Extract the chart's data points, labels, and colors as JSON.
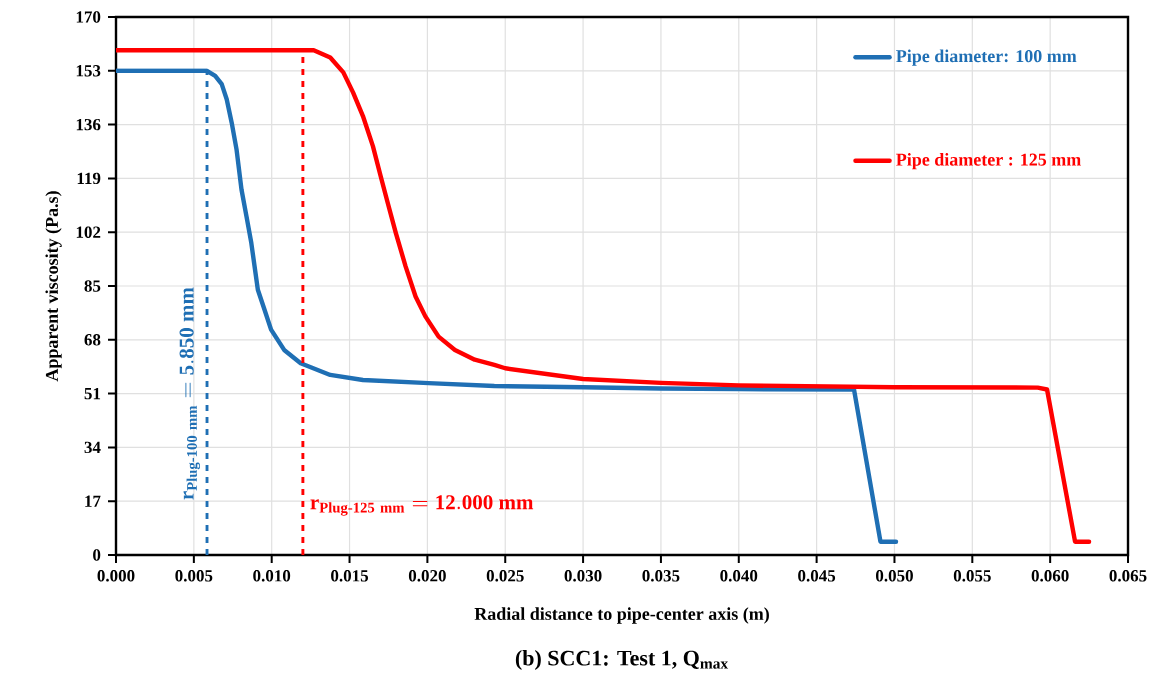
{
  "chart_data": {
    "type": "line",
    "title": "(b) SCC1: Test 1, Q$_{max}$",
    "xlabel": "Radial distance to pipe-center axis (m)",
    "ylabel": "Apparent viscosity (Pa.s)",
    "xlim": [
      0,
      0.065
    ],
    "ylim": [
      0,
      170
    ],
    "xticks": [
      {
        "value": 0,
        "label": "0.000"
      },
      {
        "value": 0.005,
        "label": "0.005"
      },
      {
        "value": 0.01,
        "label": "0.010"
      },
      {
        "value": 0.015,
        "label": "0.015"
      },
      {
        "value": 0.02,
        "label": "0.020"
      },
      {
        "value": 0.025,
        "label": "0.025"
      },
      {
        "value": 0.03,
        "label": "0.030"
      },
      {
        "value": 0.035,
        "label": "0.035"
      },
      {
        "value": 0.04,
        "label": "0.040"
      },
      {
        "value": 0.045,
        "label": "0.045"
      },
      {
        "value": 0.05,
        "label": "0.050"
      },
      {
        "value": 0.055,
        "label": "0.055"
      },
      {
        "value": 0.06,
        "label": "0.060"
      },
      {
        "value": 0.065,
        "label": "0.065"
      }
    ],
    "yticks": [
      0,
      17,
      34,
      51,
      68,
      85,
      102,
      119,
      136,
      153,
      170
    ],
    "grid": true,
    "legend": "top right",
    "marker": "none",
    "line_style": "solid",
    "series": [
      {
        "name": "Pipe diameter: 100 mm",
        "color": "#1f6fb4",
        "x": [
          0,
          0.00584,
          0.00637,
          0.00679,
          0.00711,
          0.00743,
          0.00774,
          0.00806,
          0.00838,
          0.00869,
          0.0089,
          0.00911,
          0.00954,
          0.00996,
          0.0108,
          0.01186,
          0.01376,
          0.01586,
          0.02008,
          0.0243,
          0.03,
          0.035,
          0.04,
          0.0474,
          0.0491,
          0.0501
        ],
        "values": [
          153,
          153,
          151.4,
          148.8,
          144,
          136.6,
          128.2,
          115.5,
          107,
          98.6,
          91.2,
          83.8,
          77.5,
          71.2,
          64.8,
          60.6,
          56.9,
          55.3,
          54.3,
          53.4,
          53,
          52.6,
          52.4,
          52.3,
          4.2,
          4.2
        ]
      },
      {
        "name": "Pipe diameter : 125 mm",
        "color": "#ff0000",
        "x": [
          0,
          0.0127,
          0.01376,
          0.0146,
          0.01523,
          0.01586,
          0.0165,
          0.017,
          0.01745,
          0.01797,
          0.0186,
          0.01924,
          0.01987,
          0.02072,
          0.02177,
          0.02304,
          0.0243,
          0.025,
          0.03,
          0.035,
          0.04,
          0.045,
          0.05,
          0.0592,
          0.0598,
          0.0616,
          0.0625
        ],
        "values": [
          159.5,
          159.5,
          157.2,
          152.5,
          146.1,
          138.7,
          129.2,
          119.7,
          111.3,
          101.8,
          91.2,
          81.7,
          75.4,
          69,
          64.8,
          61.7,
          60.1,
          59,
          55.6,
          54.4,
          53.6,
          53.3,
          53,
          52.9,
          52.3,
          4.2,
          4.2
        ]
      }
    ],
    "ref_lines": [
      {
        "axis": "x",
        "value": 0.00585,
        "label": "\\mathbf{r_{Plug\\text{-}100\\ mm} = 5.850\\ mm}",
        "color": "#1f6fb4",
        "line_style": "dashed"
      },
      {
        "axis": "x",
        "value": 0.012,
        "label": "\\mathbf{r_{Plug\\text{-}125\\ mm} = 12.000\\ mm}",
        "color": "#ff0000",
        "line_style": "dashed"
      }
    ]
  }
}
